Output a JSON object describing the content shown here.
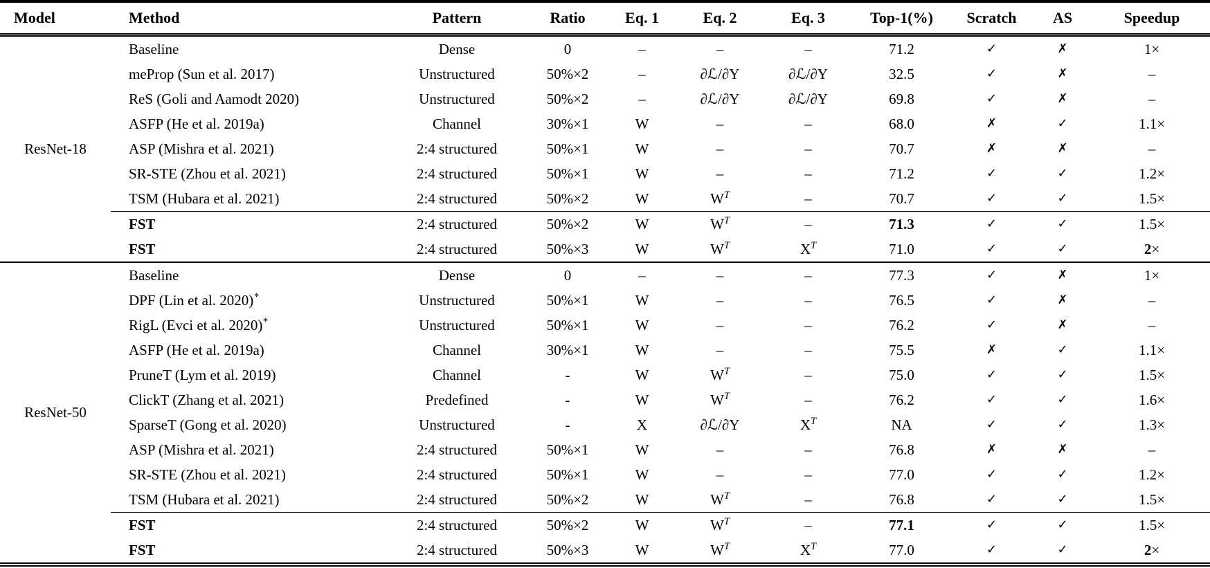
{
  "colors": {
    "text": "#000000",
    "background": "#ffffff",
    "rules": "#000000"
  },
  "table": {
    "columns": [
      "Model",
      "Method",
      "Pattern",
      "Ratio",
      "Eq. 1",
      "Eq. 2",
      "Eq. 3",
      "Top-1(%)",
      "Scratch",
      "AS",
      "Speedup"
    ],
    "groups": [
      {
        "model": "ResNet-18",
        "rows": [
          {
            "method": "Baseline",
            "pattern": "Dense",
            "ratio": "0",
            "eq1": "–",
            "eq2": "–",
            "eq3": "–",
            "top1": "71.2",
            "scratch": "✓",
            "as": "✗",
            "speedup": "1×"
          },
          {
            "method": "meProp (Sun et al. 2017)",
            "pattern": "Unstructured",
            "ratio": "50%×2",
            "eq1": "–",
            "eq2": "∂ℒ/∂Y",
            "eq3": "∂ℒ/∂Y",
            "top1": "32.5",
            "scratch": "✓",
            "as": "✗",
            "speedup": "–"
          },
          {
            "method": "ReS (Goli and Aamodt 2020)",
            "pattern": "Unstructured",
            "ratio": "50%×2",
            "eq1": "–",
            "eq2": "∂ℒ/∂Y",
            "eq3": "∂ℒ/∂Y",
            "top1": "69.8",
            "scratch": "✓",
            "as": "✗",
            "speedup": "–"
          },
          {
            "method": "ASFP (He et al. 2019a)",
            "pattern": "Channel",
            "ratio": "30%×1",
            "eq1": "W",
            "eq2": "–",
            "eq3": "–",
            "top1": "68.0",
            "scratch": "✗",
            "as": "✓",
            "speedup": "1.1×"
          },
          {
            "method": "ASP (Mishra et al. 2021)",
            "pattern": "2:4 structured",
            "ratio": "50%×1",
            "eq1": "W",
            "eq2": "–",
            "eq3": "–",
            "top1": "70.7",
            "scratch": "✗",
            "as": "✗",
            "speedup": "–"
          },
          {
            "method": "SR-STE (Zhou et al. 2021)",
            "pattern": "2:4 structured",
            "ratio": "50%×1",
            "eq1": "W",
            "eq2": "–",
            "eq3": "–",
            "top1": "71.2",
            "scratch": "✓",
            "as": "✓",
            "speedup": "1.2×"
          },
          {
            "method": "TSM (Hubara et al. 2021)",
            "pattern": "2:4 structured",
            "ratio": "50%×2",
            "eq1": "W",
            "eq2": "W^{T}",
            "eq3": "–",
            "top1": "70.7",
            "scratch": "✓",
            "as": "✓",
            "speedup": "1.5×"
          },
          {
            "method": "**FST**",
            "pattern": "2:4 structured",
            "ratio": "50%×2",
            "eq1": "W",
            "eq2": "W^{T}",
            "eq3": "–",
            "top1": "**71.3**",
            "scratch": "✓",
            "as": "✓",
            "speedup": "1.5×",
            "rule_above": true
          },
          {
            "method": "**FST**",
            "pattern": "2:4 structured",
            "ratio": "50%×3",
            "eq1": "W",
            "eq2": "W^{T}",
            "eq3": "X^{T}",
            "top1": "71.0",
            "scratch": "✓",
            "as": "✓",
            "speedup": "**2**×"
          }
        ]
      },
      {
        "model": "ResNet-50",
        "rows": [
          {
            "method": "Baseline",
            "pattern": "Dense",
            "ratio": "0",
            "eq1": "–",
            "eq2": "–",
            "eq3": "–",
            "top1": "77.3",
            "scratch": "✓",
            "as": "✗",
            "speedup": "1×"
          },
          {
            "method": "DPF (Lin et al. 2020)^{*}",
            "pattern": "Unstructured",
            "ratio": "50%×1",
            "eq1": "W",
            "eq2": "–",
            "eq3": "–",
            "top1": "76.5",
            "scratch": "✓",
            "as": "✗",
            "speedup": "–"
          },
          {
            "method": "RigL (Evci et al. 2020)^{*}",
            "pattern": "Unstructured",
            "ratio": "50%×1",
            "eq1": "W",
            "eq2": "–",
            "eq3": "–",
            "top1": "76.2",
            "scratch": "✓",
            "as": "✗",
            "speedup": "–"
          },
          {
            "method": "ASFP (He et al. 2019a)",
            "pattern": "Channel",
            "ratio": "30%×1",
            "eq1": "W",
            "eq2": "–",
            "eq3": "–",
            "top1": "75.5",
            "scratch": "✗",
            "as": "✓",
            "speedup": "1.1×"
          },
          {
            "method": "PruneT (Lym et al. 2019)",
            "pattern": "Channel",
            "ratio": "-",
            "eq1": "W",
            "eq2": "W^{T}",
            "eq3": "–",
            "top1": "75.0",
            "scratch": "✓",
            "as": "✓",
            "speedup": "1.5×"
          },
          {
            "method": "ClickT (Zhang et al. 2021)",
            "pattern": "Predefined",
            "ratio": "-",
            "eq1": "W",
            "eq2": "W^{T}",
            "eq3": "–",
            "top1": "76.2",
            "scratch": "✓",
            "as": "✓",
            "speedup": "1.6×"
          },
          {
            "method": "SparseT (Gong et al. 2020)",
            "pattern": "Unstructured",
            "ratio": "-",
            "eq1": "X",
            "eq2": "∂ℒ/∂Y",
            "eq3": "X^{T}",
            "top1": "NA",
            "scratch": "✓",
            "as": "✓",
            "speedup": "1.3×"
          },
          {
            "method": "ASP (Mishra et al. 2021)",
            "pattern": "2:4 structured",
            "ratio": "50%×1",
            "eq1": "W",
            "eq2": "–",
            "eq3": "–",
            "top1": "76.8",
            "scratch": "✗",
            "as": "✗",
            "speedup": "–"
          },
          {
            "method": "SR-STE (Zhou et al. 2021)",
            "pattern": "2:4 structured",
            "ratio": "50%×1",
            "eq1": "W",
            "eq2": "–",
            "eq3": "–",
            "top1": "77.0",
            "scratch": "✓",
            "as": "✓",
            "speedup": "1.2×"
          },
          {
            "method": "TSM (Hubara et al. 2021)",
            "pattern": "2:4 structured",
            "ratio": "50%×2",
            "eq1": "W",
            "eq2": "W^{T}",
            "eq3": "–",
            "top1": "76.8",
            "scratch": "✓",
            "as": "✓",
            "speedup": "1.5×"
          },
          {
            "method": "**FST**",
            "pattern": "2:4 structured",
            "ratio": "50%×2",
            "eq1": "W",
            "eq2": "W^{T}",
            "eq3": "–",
            "top1": "**77.1**",
            "scratch": "✓",
            "as": "✓",
            "speedup": "1.5×",
            "rule_above": true
          },
          {
            "method": "**FST**",
            "pattern": "2:4 structured",
            "ratio": "50%×3",
            "eq1": "W",
            "eq2": "W^{T}",
            "eq3": "X^{T}",
            "top1": "77.0",
            "scratch": "✓",
            "as": "✓",
            "speedup": "**2**×"
          }
        ]
      }
    ]
  }
}
